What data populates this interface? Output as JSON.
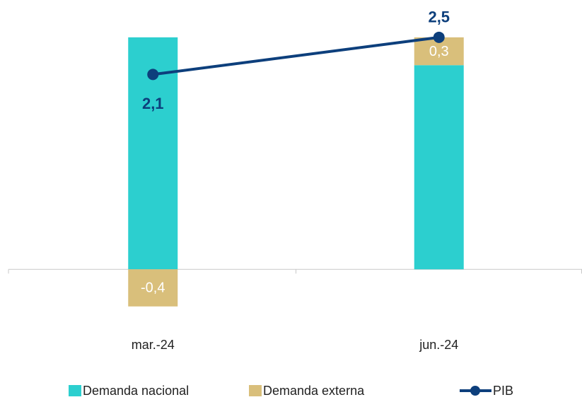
{
  "chart_data": {
    "type": "stacked_bar_line",
    "categories": [
      "mar.-24",
      "jun.-24"
    ],
    "series": [
      {
        "name": "Demanda nacional",
        "type": "bar",
        "color": "#2ccfcf",
        "values": [
          2.5,
          2.2
        ]
      },
      {
        "name": "Demanda externa",
        "type": "bar",
        "color": "#d9bf7b",
        "values": [
          -0.4,
          0.3
        ],
        "value_labels": [
          "-0,4",
          "0,3"
        ]
      },
      {
        "name": "PIB",
        "type": "line",
        "color": "#0d3f7c",
        "values": [
          2.1,
          2.5
        ],
        "value_labels": [
          "2,1",
          "2,5"
        ]
      }
    ],
    "ylim": [
      -0.6,
      2.75
    ],
    "legend": "bottom"
  }
}
